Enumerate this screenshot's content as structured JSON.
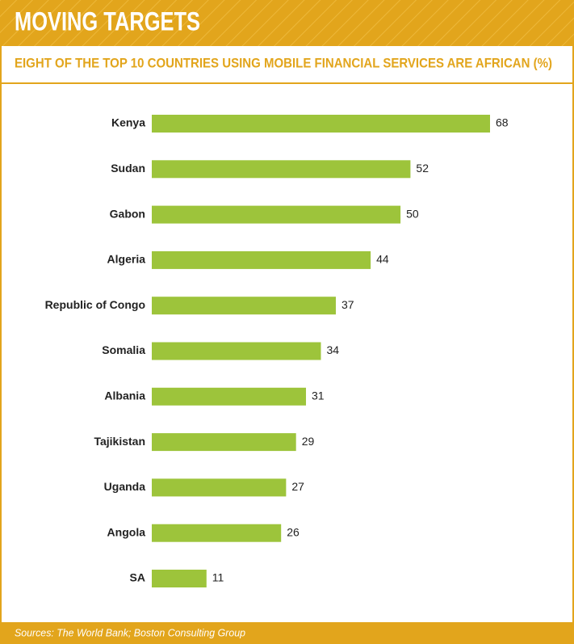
{
  "chart_data": {
    "type": "bar",
    "orientation": "horizontal",
    "title": "MOVING TARGETS",
    "subtitle": "EIGHT OF THE TOP 10 COUNTRIES USING MOBILE FINANCIAL SERVICES ARE AFRICAN (%)",
    "source": "Sources: The World Bank; Boston Consulting Group",
    "categories": [
      "Kenya",
      "Sudan",
      "Gabon",
      "Algeria",
      "Republic of Congo",
      "Somalia",
      "Albania",
      "Tajikistan",
      "Uganda",
      "Angola",
      "SA"
    ],
    "values": [
      68,
      52,
      50,
      44,
      37,
      34,
      31,
      29,
      27,
      26,
      11
    ],
    "color": "#9dc43b"
  }
}
